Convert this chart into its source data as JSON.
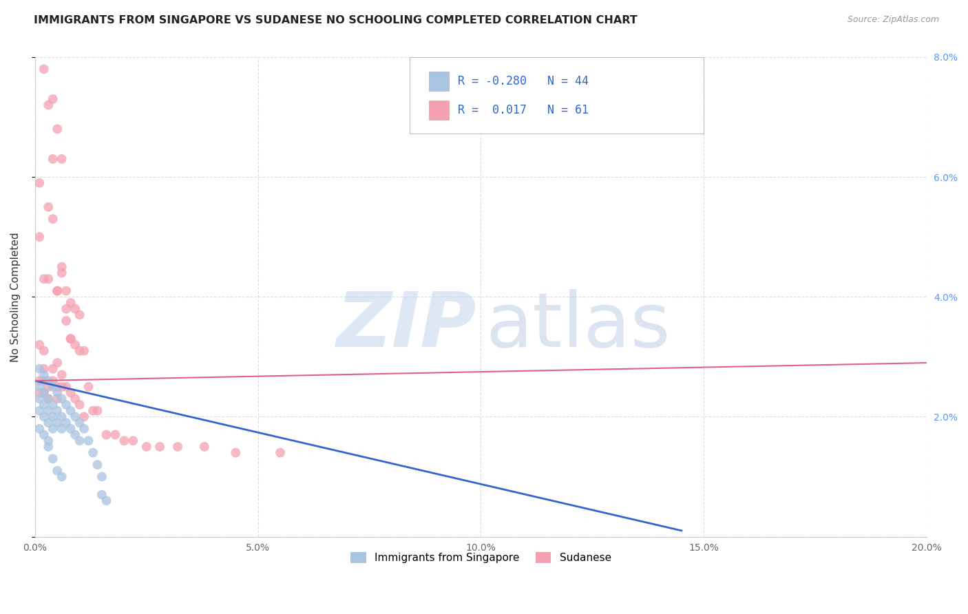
{
  "title": "IMMIGRANTS FROM SINGAPORE VS SUDANESE NO SCHOOLING COMPLETED CORRELATION CHART",
  "source": "Source: ZipAtlas.com",
  "xlabel": "",
  "ylabel": "No Schooling Completed",
  "xlim": [
    0.0,
    0.2
  ],
  "ylim": [
    0.0,
    0.08
  ],
  "xticks": [
    0.0,
    0.05,
    0.1,
    0.15,
    0.2
  ],
  "xtick_labels": [
    "0.0%",
    "5.0%",
    "10.0%",
    "15.0%",
    "20.0%"
  ],
  "yticks": [
    0.0,
    0.02,
    0.04,
    0.06,
    0.08
  ],
  "ytick_labels_right": [
    "",
    "2.0%",
    "4.0%",
    "6.0%",
    "8.0%"
  ],
  "series1_name": "Immigrants from Singapore",
  "series1_color": "#a8c4e0",
  "series1_line_color": "#3366cc",
  "series1_R": "-0.280",
  "series1_N": "44",
  "series2_name": "Sudanese",
  "series2_color": "#f4a0b0",
  "series2_line_color": "#e06080",
  "series2_R": "0.017",
  "series2_N": "61",
  "watermark_zip": "ZIP",
  "watermark_atlas": "atlas",
  "background_color": "#ffffff",
  "grid_color": "#dddddd",
  "series1_x": [
    0.001,
    0.001,
    0.001,
    0.001,
    0.001,
    0.002,
    0.002,
    0.002,
    0.002,
    0.002,
    0.003,
    0.003,
    0.003,
    0.003,
    0.003,
    0.004,
    0.004,
    0.004,
    0.004,
    0.005,
    0.005,
    0.005,
    0.006,
    0.006,
    0.006,
    0.007,
    0.007,
    0.008,
    0.008,
    0.009,
    0.009,
    0.01,
    0.01,
    0.011,
    0.012,
    0.013,
    0.014,
    0.015,
    0.003,
    0.004,
    0.005,
    0.006,
    0.015,
    0.016
  ],
  "series1_y": [
    0.028,
    0.025,
    0.023,
    0.021,
    0.018,
    0.027,
    0.024,
    0.022,
    0.02,
    0.017,
    0.026,
    0.023,
    0.021,
    0.019,
    0.016,
    0.025,
    0.022,
    0.02,
    0.018,
    0.024,
    0.021,
    0.019,
    0.023,
    0.02,
    0.018,
    0.022,
    0.019,
    0.021,
    0.018,
    0.02,
    0.017,
    0.019,
    0.016,
    0.018,
    0.016,
    0.014,
    0.012,
    0.01,
    0.015,
    0.013,
    0.011,
    0.01,
    0.007,
    0.006
  ],
  "series2_x": [
    0.001,
    0.001,
    0.001,
    0.001,
    0.002,
    0.002,
    0.002,
    0.002,
    0.002,
    0.003,
    0.003,
    0.003,
    0.003,
    0.004,
    0.004,
    0.004,
    0.004,
    0.005,
    0.005,
    0.005,
    0.005,
    0.005,
    0.006,
    0.006,
    0.006,
    0.006,
    0.007,
    0.007,
    0.007,
    0.008,
    0.008,
    0.008,
    0.009,
    0.009,
    0.01,
    0.01,
    0.011,
    0.012,
    0.013,
    0.014,
    0.016,
    0.018,
    0.02,
    0.022,
    0.025,
    0.028,
    0.032,
    0.038,
    0.045,
    0.055,
    0.001,
    0.002,
    0.003,
    0.004,
    0.005,
    0.006,
    0.007,
    0.008,
    0.009,
    0.01,
    0.011
  ],
  "series2_y": [
    0.032,
    0.059,
    0.026,
    0.024,
    0.031,
    0.028,
    0.026,
    0.024,
    0.078,
    0.055,
    0.043,
    0.025,
    0.023,
    0.073,
    0.053,
    0.028,
    0.026,
    0.068,
    0.041,
    0.029,
    0.025,
    0.023,
    0.063,
    0.044,
    0.027,
    0.025,
    0.041,
    0.036,
    0.025,
    0.039,
    0.033,
    0.024,
    0.038,
    0.023,
    0.037,
    0.022,
    0.031,
    0.025,
    0.021,
    0.021,
    0.017,
    0.017,
    0.016,
    0.016,
    0.015,
    0.015,
    0.015,
    0.015,
    0.014,
    0.014,
    0.05,
    0.043,
    0.072,
    0.063,
    0.041,
    0.045,
    0.038,
    0.033,
    0.032,
    0.031,
    0.02
  ],
  "trend1_x0": 0.0,
  "trend1_y0": 0.026,
  "trend1_x1": 0.145,
  "trend1_y1": 0.001,
  "trend2_x0": 0.0,
  "trend2_y0": 0.026,
  "trend2_x1": 0.2,
  "trend2_y1": 0.029
}
